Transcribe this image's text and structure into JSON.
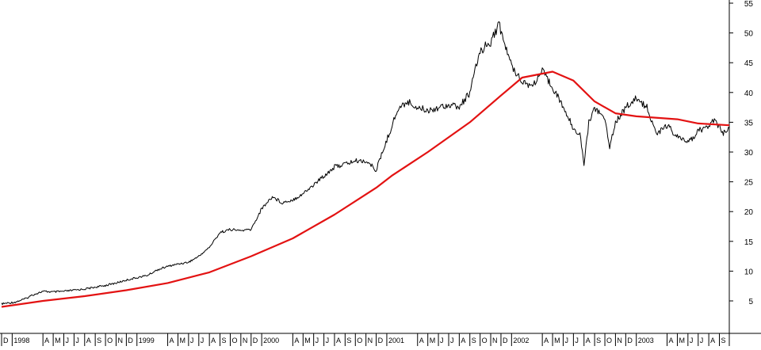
{
  "chart_data": {
    "type": "line",
    "title": "",
    "xlabel": "",
    "ylabel": "",
    "ylim": [
      0,
      56
    ],
    "xlim": [
      "1997-12-01",
      "2003-09-30"
    ],
    "y_ticks": [
      5,
      10,
      15,
      20,
      25,
      30,
      35,
      40,
      45,
      50,
      55
    ],
    "grid": false,
    "legend": "none",
    "y_axis_side": "right",
    "x_month_ticks": [
      {
        "date": "1997-12-01",
        "label": "D"
      },
      {
        "date": "1998-01-01",
        "label": "1998"
      },
      {
        "date": "1998-04-01",
        "label": "A"
      },
      {
        "date": "1998-05-01",
        "label": "M"
      },
      {
        "date": "1998-06-01",
        "label": "J"
      },
      {
        "date": "1998-07-01",
        "label": "J"
      },
      {
        "date": "1998-08-01",
        "label": "A"
      },
      {
        "date": "1998-09-01",
        "label": "S"
      },
      {
        "date": "1998-10-01",
        "label": "O"
      },
      {
        "date": "1998-11-01",
        "label": "N"
      },
      {
        "date": "1998-12-01",
        "label": "D"
      },
      {
        "date": "1999-01-01",
        "label": "1999"
      },
      {
        "date": "1999-04-01",
        "label": "A"
      },
      {
        "date": "1999-05-01",
        "label": "M"
      },
      {
        "date": "1999-06-01",
        "label": "J"
      },
      {
        "date": "1999-07-01",
        "label": "J"
      },
      {
        "date": "1999-08-01",
        "label": "A"
      },
      {
        "date": "1999-09-01",
        "label": "S"
      },
      {
        "date": "1999-10-01",
        "label": "O"
      },
      {
        "date": "1999-11-01",
        "label": "N"
      },
      {
        "date": "1999-12-01",
        "label": "D"
      },
      {
        "date": "2000-01-01",
        "label": "2000"
      },
      {
        "date": "2000-04-01",
        "label": "A"
      },
      {
        "date": "2000-05-01",
        "label": "M"
      },
      {
        "date": "2000-06-01",
        "label": "J"
      },
      {
        "date": "2000-07-01",
        "label": "J"
      },
      {
        "date": "2000-08-01",
        "label": "A"
      },
      {
        "date": "2000-09-01",
        "label": "S"
      },
      {
        "date": "2000-10-01",
        "label": "O"
      },
      {
        "date": "2000-11-01",
        "label": "N"
      },
      {
        "date": "2000-12-01",
        "label": "D"
      },
      {
        "date": "2001-01-01",
        "label": "2001"
      },
      {
        "date": "2001-04-01",
        "label": "A"
      },
      {
        "date": "2001-05-01",
        "label": "M"
      },
      {
        "date": "2001-06-01",
        "label": "J"
      },
      {
        "date": "2001-07-01",
        "label": "J"
      },
      {
        "date": "2001-08-01",
        "label": "A"
      },
      {
        "date": "2001-09-01",
        "label": "S"
      },
      {
        "date": "2001-10-01",
        "label": "O"
      },
      {
        "date": "2001-11-01",
        "label": "N"
      },
      {
        "date": "2001-12-01",
        "label": "D"
      },
      {
        "date": "2002-01-01",
        "label": "2002"
      },
      {
        "date": "2002-04-01",
        "label": "A"
      },
      {
        "date": "2002-05-01",
        "label": "M"
      },
      {
        "date": "2002-06-01",
        "label": "J"
      },
      {
        "date": "2002-07-01",
        "label": "J"
      },
      {
        "date": "2002-08-01",
        "label": "A"
      },
      {
        "date": "2002-09-01",
        "label": "S"
      },
      {
        "date": "2002-10-01",
        "label": "O"
      },
      {
        "date": "2002-11-01",
        "label": "N"
      },
      {
        "date": "2002-12-01",
        "label": "D"
      },
      {
        "date": "2003-01-01",
        "label": "2003"
      },
      {
        "date": "2003-04-01",
        "label": "A"
      },
      {
        "date": "2003-05-01",
        "label": "M"
      },
      {
        "date": "2003-06-01",
        "label": "J"
      },
      {
        "date": "2003-07-01",
        "label": "J"
      },
      {
        "date": "2003-08-01",
        "label": "A"
      },
      {
        "date": "2003-09-01",
        "label": "S"
      }
    ],
    "series": [
      {
        "color": "#000000",
        "style": "price",
        "points": [
          [
            "1997-12-01",
            4.5
          ],
          [
            "1998-01-10",
            4.8
          ],
          [
            "1998-02-10",
            5.4
          ],
          [
            "1998-03-01",
            6.0
          ],
          [
            "1998-04-01",
            6.6
          ],
          [
            "1998-05-01",
            6.5
          ],
          [
            "1998-06-01",
            6.6
          ],
          [
            "1998-07-01",
            6.8
          ],
          [
            "1998-08-01",
            7.0
          ],
          [
            "1998-09-01",
            7.3
          ],
          [
            "1998-10-01",
            7.6
          ],
          [
            "1998-11-01",
            8.0
          ],
          [
            "1998-12-01",
            8.5
          ],
          [
            "1999-01-01",
            8.9
          ],
          [
            "1999-02-01",
            9.3
          ],
          [
            "1999-03-01",
            10.2
          ],
          [
            "1999-04-01",
            10.8
          ],
          [
            "1999-05-01",
            11.2
          ],
          [
            "1999-06-01",
            11.5
          ],
          [
            "1999-07-01",
            12.5
          ],
          [
            "1999-08-01",
            14.0
          ],
          [
            "1999-09-01",
            16.5
          ],
          [
            "1999-10-01",
            17.0
          ],
          [
            "1999-11-01",
            16.8
          ],
          [
            "1999-12-01",
            17.0
          ],
          [
            "2000-01-01",
            20.5
          ],
          [
            "2000-02-01",
            22.5
          ],
          [
            "2000-03-01",
            21.5
          ],
          [
            "2000-04-01",
            22.0
          ],
          [
            "2000-05-01",
            23.0
          ],
          [
            "2000-06-01",
            24.5
          ],
          [
            "2000-07-01",
            26.0
          ],
          [
            "2000-08-01",
            27.5
          ],
          [
            "2000-09-01",
            28.0
          ],
          [
            "2000-10-01",
            28.5
          ],
          [
            "2000-11-01",
            28.5
          ],
          [
            "2000-12-01",
            27.0
          ],
          [
            "2001-01-01",
            32.0
          ],
          [
            "2001-02-01",
            37.0
          ],
          [
            "2001-03-01",
            38.5
          ],
          [
            "2001-04-01",
            37.5
          ],
          [
            "2001-05-01",
            37.0
          ],
          [
            "2001-06-01",
            37.5
          ],
          [
            "2001-07-01",
            38.0
          ],
          [
            "2001-08-01",
            37.5
          ],
          [
            "2001-09-01",
            40.0
          ],
          [
            "2001-10-01",
            47.0
          ],
          [
            "2001-11-01",
            48.5
          ],
          [
            "2001-11-25",
            51.5
          ],
          [
            "2001-12-15",
            47.5
          ],
          [
            "2002-01-01",
            44.5
          ],
          [
            "2002-02-01",
            42.0
          ],
          [
            "2002-03-01",
            41.0
          ],
          [
            "2002-04-01",
            43.5
          ],
          [
            "2002-05-01",
            41.0
          ],
          [
            "2002-06-01",
            37.5
          ],
          [
            "2002-07-01",
            34.0
          ],
          [
            "2002-07-20",
            33.0
          ],
          [
            "2002-08-01",
            28.0
          ],
          [
            "2002-08-15",
            35.0
          ],
          [
            "2002-09-01",
            37.5
          ],
          [
            "2002-10-01",
            35.5
          ],
          [
            "2002-10-15",
            31.0
          ],
          [
            "2002-11-01",
            35.0
          ],
          [
            "2002-12-01",
            37.5
          ],
          [
            "2003-01-01",
            39.0
          ],
          [
            "2003-02-01",
            37.5
          ],
          [
            "2003-03-01",
            33.0
          ],
          [
            "2003-04-01",
            34.5
          ],
          [
            "2003-05-01",
            32.5
          ],
          [
            "2003-06-01",
            31.5
          ],
          [
            "2003-07-01",
            33.5
          ],
          [
            "2003-08-01",
            34.5
          ],
          [
            "2003-08-20",
            35.5
          ],
          [
            "2003-09-10",
            33.0
          ],
          [
            "2003-09-30",
            34.0
          ]
        ]
      },
      {
        "color": "#e31212",
        "style": "moving-average",
        "points": [
          [
            "1997-12-01",
            4.0
          ],
          [
            "1998-04-01",
            5.0
          ],
          [
            "1998-08-01",
            5.8
          ],
          [
            "1998-12-01",
            6.8
          ],
          [
            "1999-04-01",
            8.0
          ],
          [
            "1999-08-01",
            9.8
          ],
          [
            "1999-12-01",
            12.5
          ],
          [
            "2000-04-01",
            15.5
          ],
          [
            "2000-08-01",
            19.5
          ],
          [
            "2000-12-01",
            24.0
          ],
          [
            "2001-01-15",
            26.0
          ],
          [
            "2001-05-01",
            30.0
          ],
          [
            "2001-09-01",
            35.0
          ],
          [
            "2001-12-01",
            39.5
          ],
          [
            "2002-02-01",
            42.5
          ],
          [
            "2002-05-01",
            43.5
          ],
          [
            "2002-07-01",
            42.0
          ],
          [
            "2002-09-01",
            38.5
          ],
          [
            "2002-11-01",
            36.5
          ],
          [
            "2003-01-01",
            36.0
          ],
          [
            "2003-05-01",
            35.5
          ],
          [
            "2003-07-01",
            34.8
          ],
          [
            "2003-09-30",
            34.5
          ]
        ]
      }
    ]
  }
}
